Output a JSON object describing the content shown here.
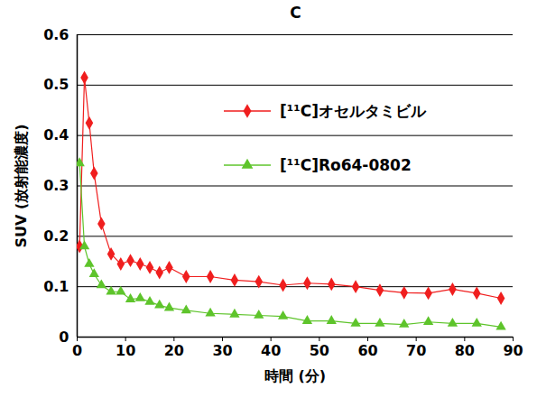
{
  "chart_data": {
    "type": "line",
    "title": "C",
    "x_label": "時間 (分)",
    "y_label": "SUV (放射能濃度)",
    "x": [
      0.5,
      1.5,
      2.5,
      3.5,
      5,
      7,
      9,
      11,
      13,
      15,
      17,
      19,
      22.5,
      27.5,
      32.5,
      37.5,
      42.5,
      47.5,
      52.5,
      57.5,
      62.5,
      67.5,
      72.5,
      77.5,
      82.5,
      87.5
    ],
    "series": [
      {
        "name": "[¹¹C]オセルタミビル",
        "color": "#f01e1e",
        "marker": "diamond",
        "values": [
          0.18,
          0.515,
          0.425,
          0.325,
          0.225,
          0.165,
          0.145,
          0.152,
          0.145,
          0.138,
          0.128,
          0.138,
          0.12,
          0.12,
          0.113,
          0.11,
          0.103,
          0.107,
          0.105,
          0.1,
          0.093,
          0.088,
          0.087,
          0.095,
          0.087,
          0.077
        ]
      },
      {
        "name": "[¹¹C]Ro64-0802",
        "color": "#5ec42b",
        "marker": "triangle",
        "values": [
          0.345,
          0.18,
          0.145,
          0.125,
          0.103,
          0.09,
          0.09,
          0.075,
          0.077,
          0.07,
          0.063,
          0.058,
          0.053,
          0.047,
          0.045,
          0.043,
          0.041,
          0.032,
          0.032,
          0.027,
          0.027,
          0.025,
          0.03,
          0.027,
          0.027,
          0.02
        ]
      }
    ],
    "xlim": [
      0,
      90
    ],
    "xticks": [
      0,
      10,
      20,
      30,
      40,
      50,
      60,
      70,
      80,
      90
    ],
    "ylim": [
      0,
      0.6
    ],
    "yticks": [
      0,
      0.1,
      0.2,
      0.3,
      0.4,
      0.5,
      0.6
    ],
    "grid": true,
    "legend": "upper right"
  }
}
